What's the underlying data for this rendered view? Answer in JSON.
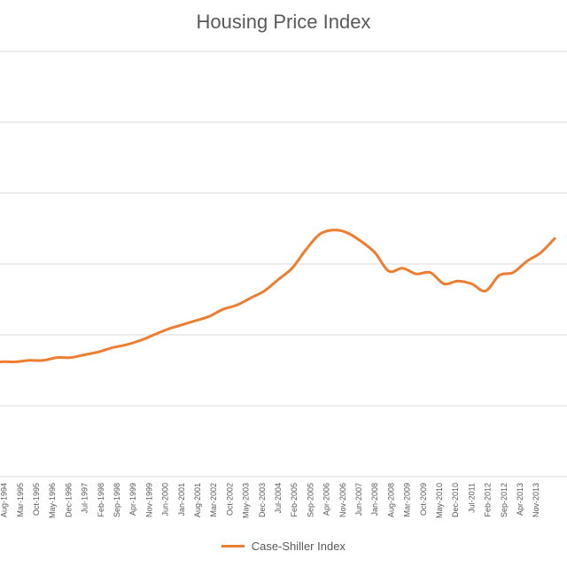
{
  "chart_data": {
    "type": "line",
    "title": "Housing Price Index",
    "xlabel": "",
    "ylabel": "",
    "legend_position": "bottom",
    "grid": true,
    "colors": {
      "series": "#ED7D31",
      "grid": "#D9D9D9",
      "text": "#595959"
    },
    "x_tick_labels": [
      "Aug-1994",
      "Mar-1995",
      "Oct-1995",
      "May-1996",
      "Dec-1996",
      "Jul-1997",
      "Feb-1998",
      "Sep-1998",
      "Apr-1999",
      "Nov-1999",
      "Jun-2000",
      "Jan-2001",
      "Aug-2001",
      "Mar-2002",
      "Oct-2002",
      "May-2003",
      "Dec-2003",
      "Jul-2004",
      "Feb-2005",
      "Sep-2005",
      "Apr-2006",
      "Nov-2006",
      "Jun-2007",
      "Jan-2008",
      "Aug-2008",
      "Mar-2009",
      "Oct-2009",
      "May-2010",
      "Dec-2010",
      "Jul-2011",
      "Feb-2012",
      "Sep-2012",
      "Apr-2013",
      "Nov-2013"
    ],
    "ylim": [
      0,
      300
    ],
    "y_gridlines": [
      50,
      100,
      150,
      200,
      250,
      300
    ],
    "series": [
      {
        "name": "Case-Shiller Index",
        "x": [
          "Jan-1994",
          "Jul-1994",
          "Jan-1995",
          "Jul-1995",
          "Jan-1996",
          "Jul-1996",
          "Jan-1997",
          "Jul-1997",
          "Jan-1998",
          "Jul-1998",
          "Jan-1999",
          "Jul-1999",
          "Jan-2000",
          "Jul-2000",
          "Jan-2001",
          "Jul-2001",
          "Jan-2002",
          "Jul-2002",
          "Jan-2003",
          "Jul-2003",
          "Jan-2004",
          "Jul-2004",
          "Jan-2005",
          "Jul-2005",
          "Jan-2006",
          "Jul-2006",
          "Jan-2007",
          "Jul-2007",
          "Jan-2008",
          "Jul-2008",
          "Jan-2009",
          "Jul-2009",
          "Jan-2010",
          "Jul-2010",
          "Jan-2011",
          "Jul-2011",
          "Jan-2012",
          "Jul-2012",
          "Jan-2013",
          "Jul-2013",
          "Jan-2014",
          "Jul-2014"
        ],
        "values": [
          79,
          81,
          81,
          82,
          82,
          84,
          84,
          86,
          88,
          91,
          93,
          96,
          100,
          104,
          107,
          110,
          113,
          118,
          121,
          126,
          131,
          139,
          147,
          160,
          171,
          174,
          172,
          166,
          158,
          145,
          147,
          143,
          144,
          136,
          138,
          136,
          131,
          142,
          144,
          152,
          158,
          168
        ]
      }
    ]
  }
}
